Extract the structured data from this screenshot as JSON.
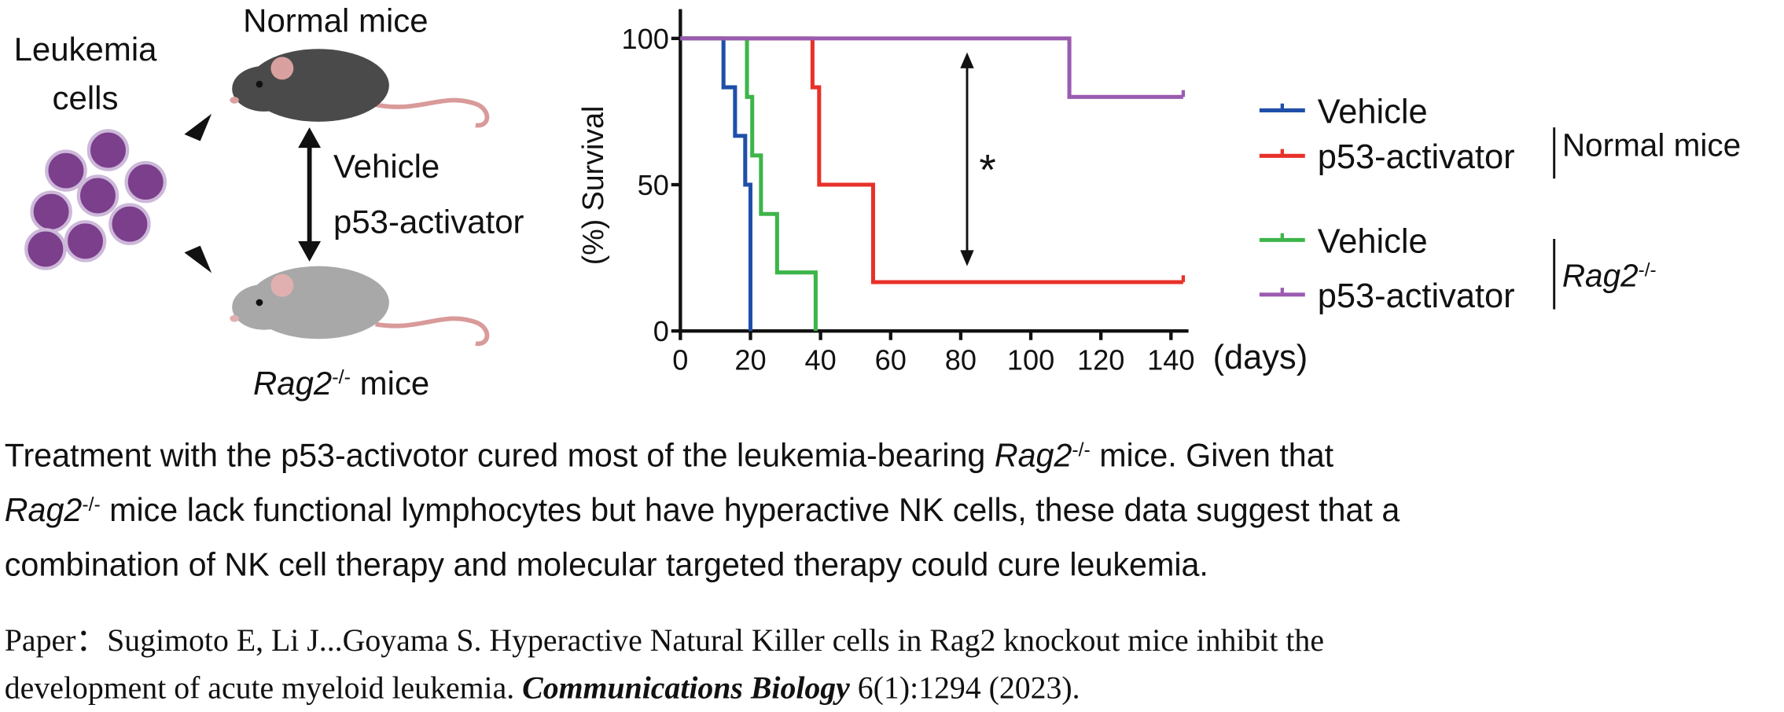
{
  "illustration": {
    "cells_label": [
      "Leukemia",
      "cells"
    ],
    "top_mouse_label": "Normal mice",
    "treatments": [
      "Vehicle",
      "p53-activator"
    ],
    "bottom_mouse_label": [
      {
        "text": "Rag2",
        "style": "italic"
      },
      {
        "text": "-/-",
        "style": "sup"
      },
      {
        "text": " mice"
      }
    ]
  },
  "chart_data": {
    "type": "step",
    "ylabel": "(%) Survival",
    "xlabel": "(days)",
    "xlim": [
      0,
      145
    ],
    "ylim": [
      0,
      110
    ],
    "xticks": [
      0,
      20,
      40,
      60,
      80,
      100,
      120,
      140
    ],
    "yticks": [
      0,
      50,
      100
    ],
    "annotation": "*",
    "series": [
      {
        "name": "Vehicle",
        "color": "#1f4fa8",
        "x": [
          0,
          12.3,
          15.6,
          18.5,
          20
        ],
        "values": [
          100,
          83.3,
          66.7,
          50,
          0
        ]
      },
      {
        "name": "p53-activator",
        "color": "#e8312a",
        "x": [
          0,
          37.7,
          39.6,
          55,
          143.5
        ],
        "values": [
          100,
          83.3,
          50,
          16.7,
          16.7
        ]
      },
      {
        "name": "Vehicle",
        "color": "#3db54a",
        "x": [
          0,
          19,
          20.5,
          23,
          27.6,
          38.6
        ],
        "values": [
          100,
          80,
          60,
          40,
          20,
          0
        ]
      },
      {
        "name": "p53-activator",
        "color": "#9a5bb0",
        "x": [
          0,
          111,
          143.5
        ],
        "values": [
          100,
          80,
          80
        ]
      }
    ],
    "legend_groups": [
      [
        {
          "text": "Normal mice"
        }
      ],
      [
        {
          "text": "Rag2",
          "style": "italic"
        },
        {
          "text": "-/-",
          "style": "sup"
        }
      ]
    ]
  },
  "caption": [
    [
      {
        "text": "Treatment with the p53-activotor cured most of the leukemia-bearing "
      },
      {
        "text": "Rag2",
        "style": "italic"
      },
      {
        "text": "-/-",
        "style": "sup"
      },
      {
        "text": " mice. Given that"
      }
    ],
    [
      {
        "text": "Rag2",
        "style": "italic"
      },
      {
        "text": "-/-",
        "style": "sup"
      },
      {
        "text": " mice lack functional lymphocytes but have hyperactive NK cells, these data suggest that a"
      }
    ],
    [
      {
        "text": "combination of NK cell therapy and molecular targeted therapy could cure leukemia."
      }
    ]
  ],
  "reference": [
    [
      {
        "text": "Paper：Sugimoto E, Li J...Goyama S. Hyperactive Natural Killer cells in Rag2 knockout mice inhibit the"
      }
    ],
    [
      {
        "text": "development of acute myeloid leukemia. "
      },
      {
        "text": "Communications Biology",
        "style": "bold-italic"
      },
      {
        "text": " 6(1):1294 (2023)."
      }
    ]
  ]
}
